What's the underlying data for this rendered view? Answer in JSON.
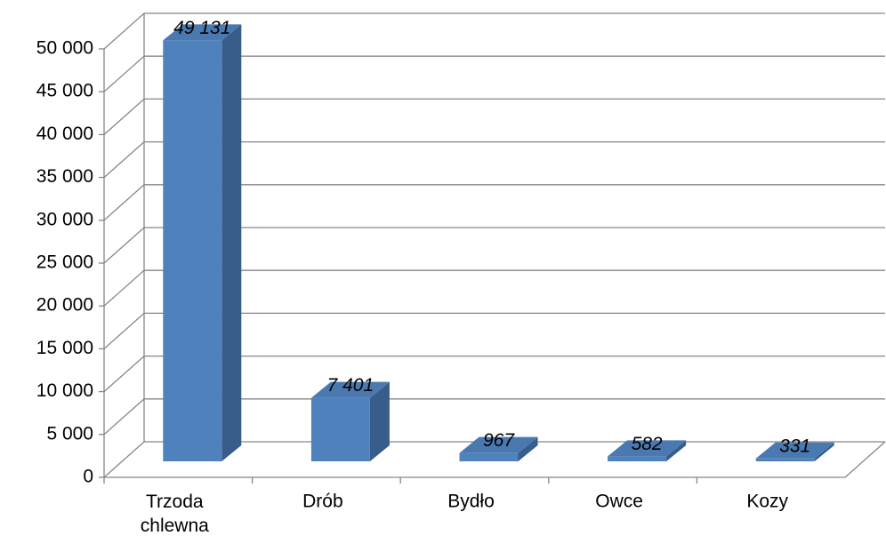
{
  "chart_data": {
    "type": "bar3d",
    "categories": [
      "Trzoda chlewna",
      "Drób",
      "Bydło",
      "Owce",
      "Kozy"
    ],
    "values": [
      49131,
      7401,
      967,
      582,
      331
    ],
    "value_labels": [
      "49 131",
      "7 401",
      "967",
      "582",
      "331"
    ],
    "color": "#4f81bd",
    "ylim": [
      0,
      50000
    ],
    "yticks": [
      0,
      {
        "value": 5000,
        "label": "5 000"
      },
      {
        "value": 10000,
        "label": "10 000"
      },
      {
        "value": 15000,
        "label": "15 000"
      },
      {
        "value": 20000,
        "label": "20 000"
      },
      {
        "value": 25000,
        "label": "25 000"
      },
      {
        "value": 30000,
        "label": "30 000"
      },
      {
        "value": 35000,
        "label": "35 000"
      },
      {
        "value": 40000,
        "label": "40 000"
      },
      {
        "value": 45000,
        "label": "45 000"
      },
      {
        "value": 50000,
        "label": "50 000"
      }
    ],
    "grid": true
  }
}
